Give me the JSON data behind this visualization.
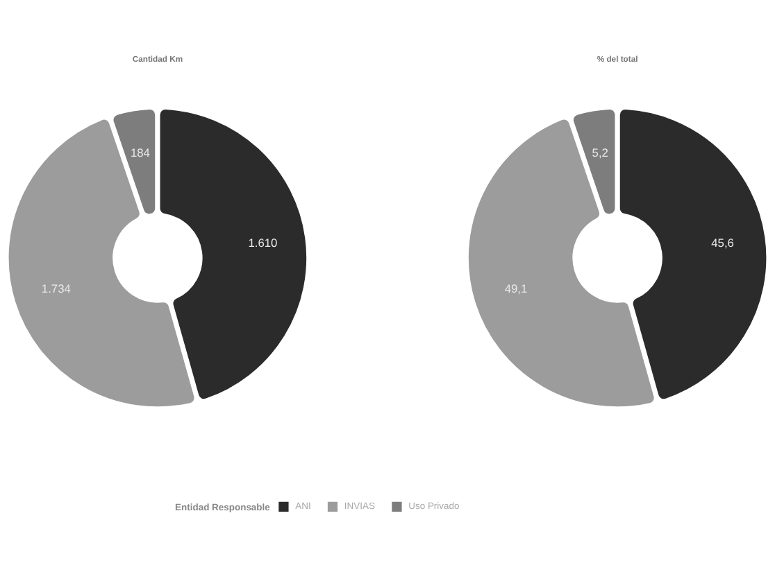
{
  "chart_data": [
    {
      "type": "donut",
      "title": "Cantidad Km",
      "categories": [
        "ANI",
        "INVIAS",
        "Uso Privado"
      ],
      "values": [
        1610,
        1734,
        184
      ],
      "colors": [
        "#2b2b2b",
        "#9c9c9c",
        "#7d7d7d"
      ],
      "value_labels": [
        "1.610",
        "1.734",
        "184"
      ],
      "legend": "bottom",
      "legend_title": "Entidad Responsable"
    },
    {
      "type": "donut",
      "title": "% del total",
      "categories": [
        null,
        null,
        null
      ],
      "values": [
        45.6,
        49.1,
        5.2
      ],
      "colors": [
        "#2b2b2b",
        "#9c9c9c",
        "#7d7d7d"
      ],
      "value_labels": [
        "45,6",
        "49,1",
        "5,2"
      ]
    }
  ]
}
